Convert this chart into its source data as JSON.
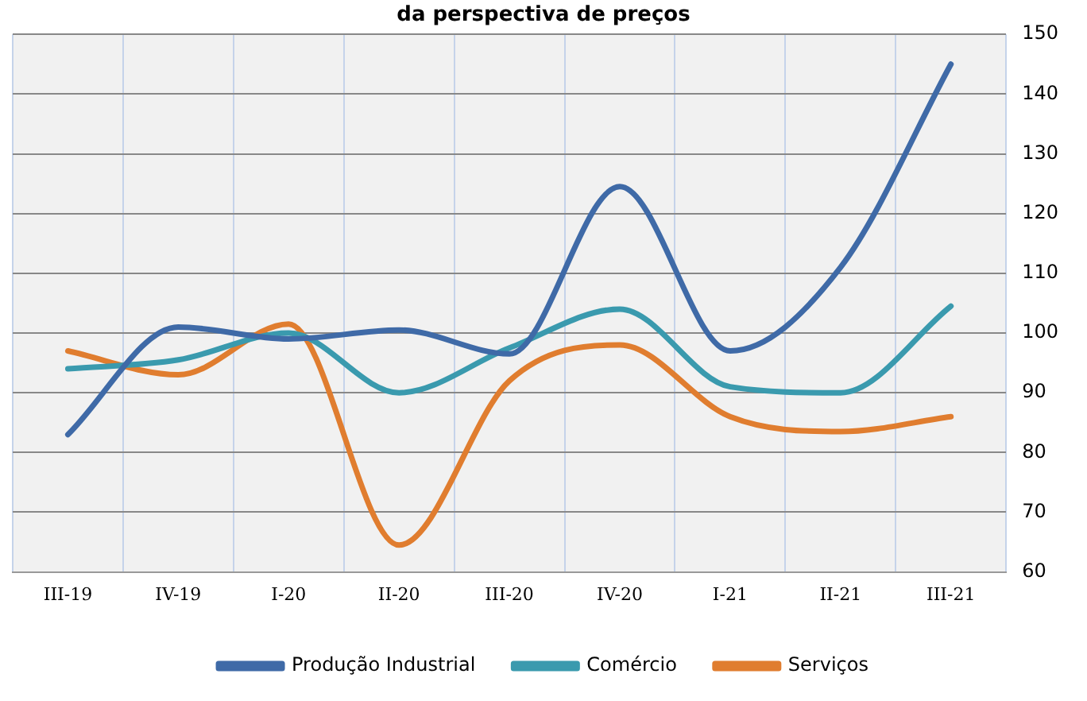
{
  "chart_data": {
    "type": "line",
    "title": "da perspectiva de preços",
    "categories": [
      "III-19",
      "IV-19",
      "I-20",
      "II-20",
      "III-20",
      "IV-20",
      "I-21",
      "II-21",
      "III-21"
    ],
    "series": [
      {
        "name": "Produção Industrial",
        "color": "#3f6aa7",
        "values": [
          83,
          101,
          99,
          100.5,
          96.5,
          124.5,
          97,
          111,
          145
        ]
      },
      {
        "name": "Comércio",
        "color": "#3a9aae",
        "values": [
          94,
          95.5,
          100,
          90,
          97.5,
          104,
          91,
          90,
          104.5
        ]
      },
      {
        "name": "Serviços",
        "color": "#e07d2f",
        "values": [
          97,
          93,
          101.5,
          64.5,
          92,
          98,
          86,
          83.5,
          86
        ]
      }
    ],
    "ylim": [
      60,
      150
    ],
    "yticks": [
      60,
      70,
      80,
      90,
      100,
      110,
      120,
      130,
      140,
      150
    ],
    "grid": true,
    "legend": "bottom",
    "marker": "none",
    "line_style": "solid"
  }
}
